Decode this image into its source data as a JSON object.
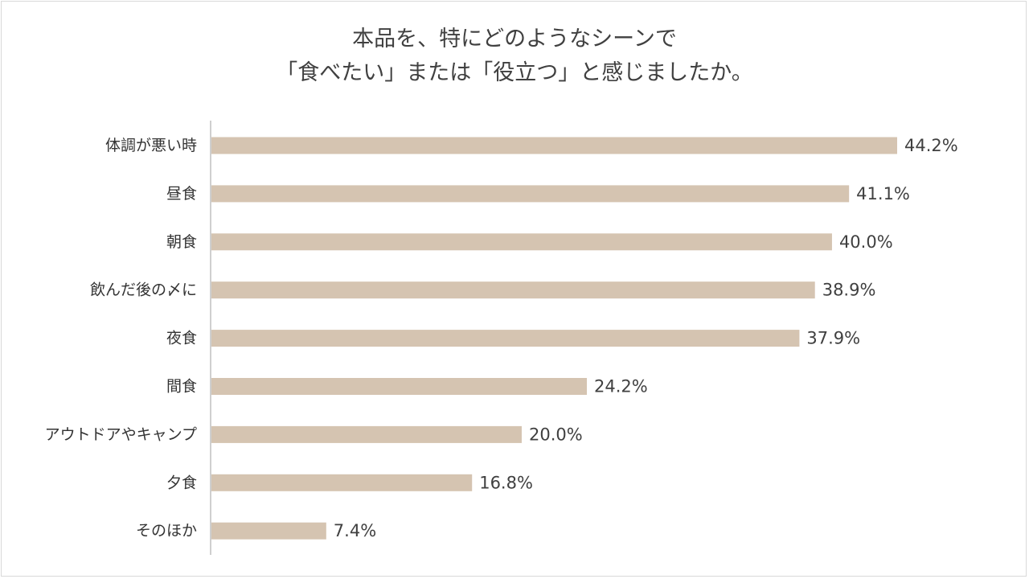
{
  "chart_data": {
    "type": "bar",
    "orientation": "horizontal",
    "title_lines": [
      "本品を、特にどのようなシーンで",
      "「食べたい」または「役立つ」と感じましたか。"
    ],
    "categories": [
      "体調が悪い時",
      "昼食",
      "朝食",
      "飲んだ後の〆に",
      "夜食",
      "間食",
      "アウトドアやキャンプ",
      "夕食",
      "そのほか"
    ],
    "values": [
      44.2,
      41.1,
      40.0,
      38.9,
      37.9,
      24.2,
      20.0,
      16.8,
      7.4
    ],
    "value_labels": [
      "44.2%",
      "41.1%",
      "40.0%",
      "38.9%",
      "37.9%",
      "24.2%",
      "20.0%",
      "16.8%",
      "7.4%"
    ],
    "unit": "%",
    "xlim": [
      0,
      50
    ],
    "grid": false,
    "legend": "none",
    "bar_color": "#d5c4b1",
    "axis_color": "#bfbfbf"
  }
}
